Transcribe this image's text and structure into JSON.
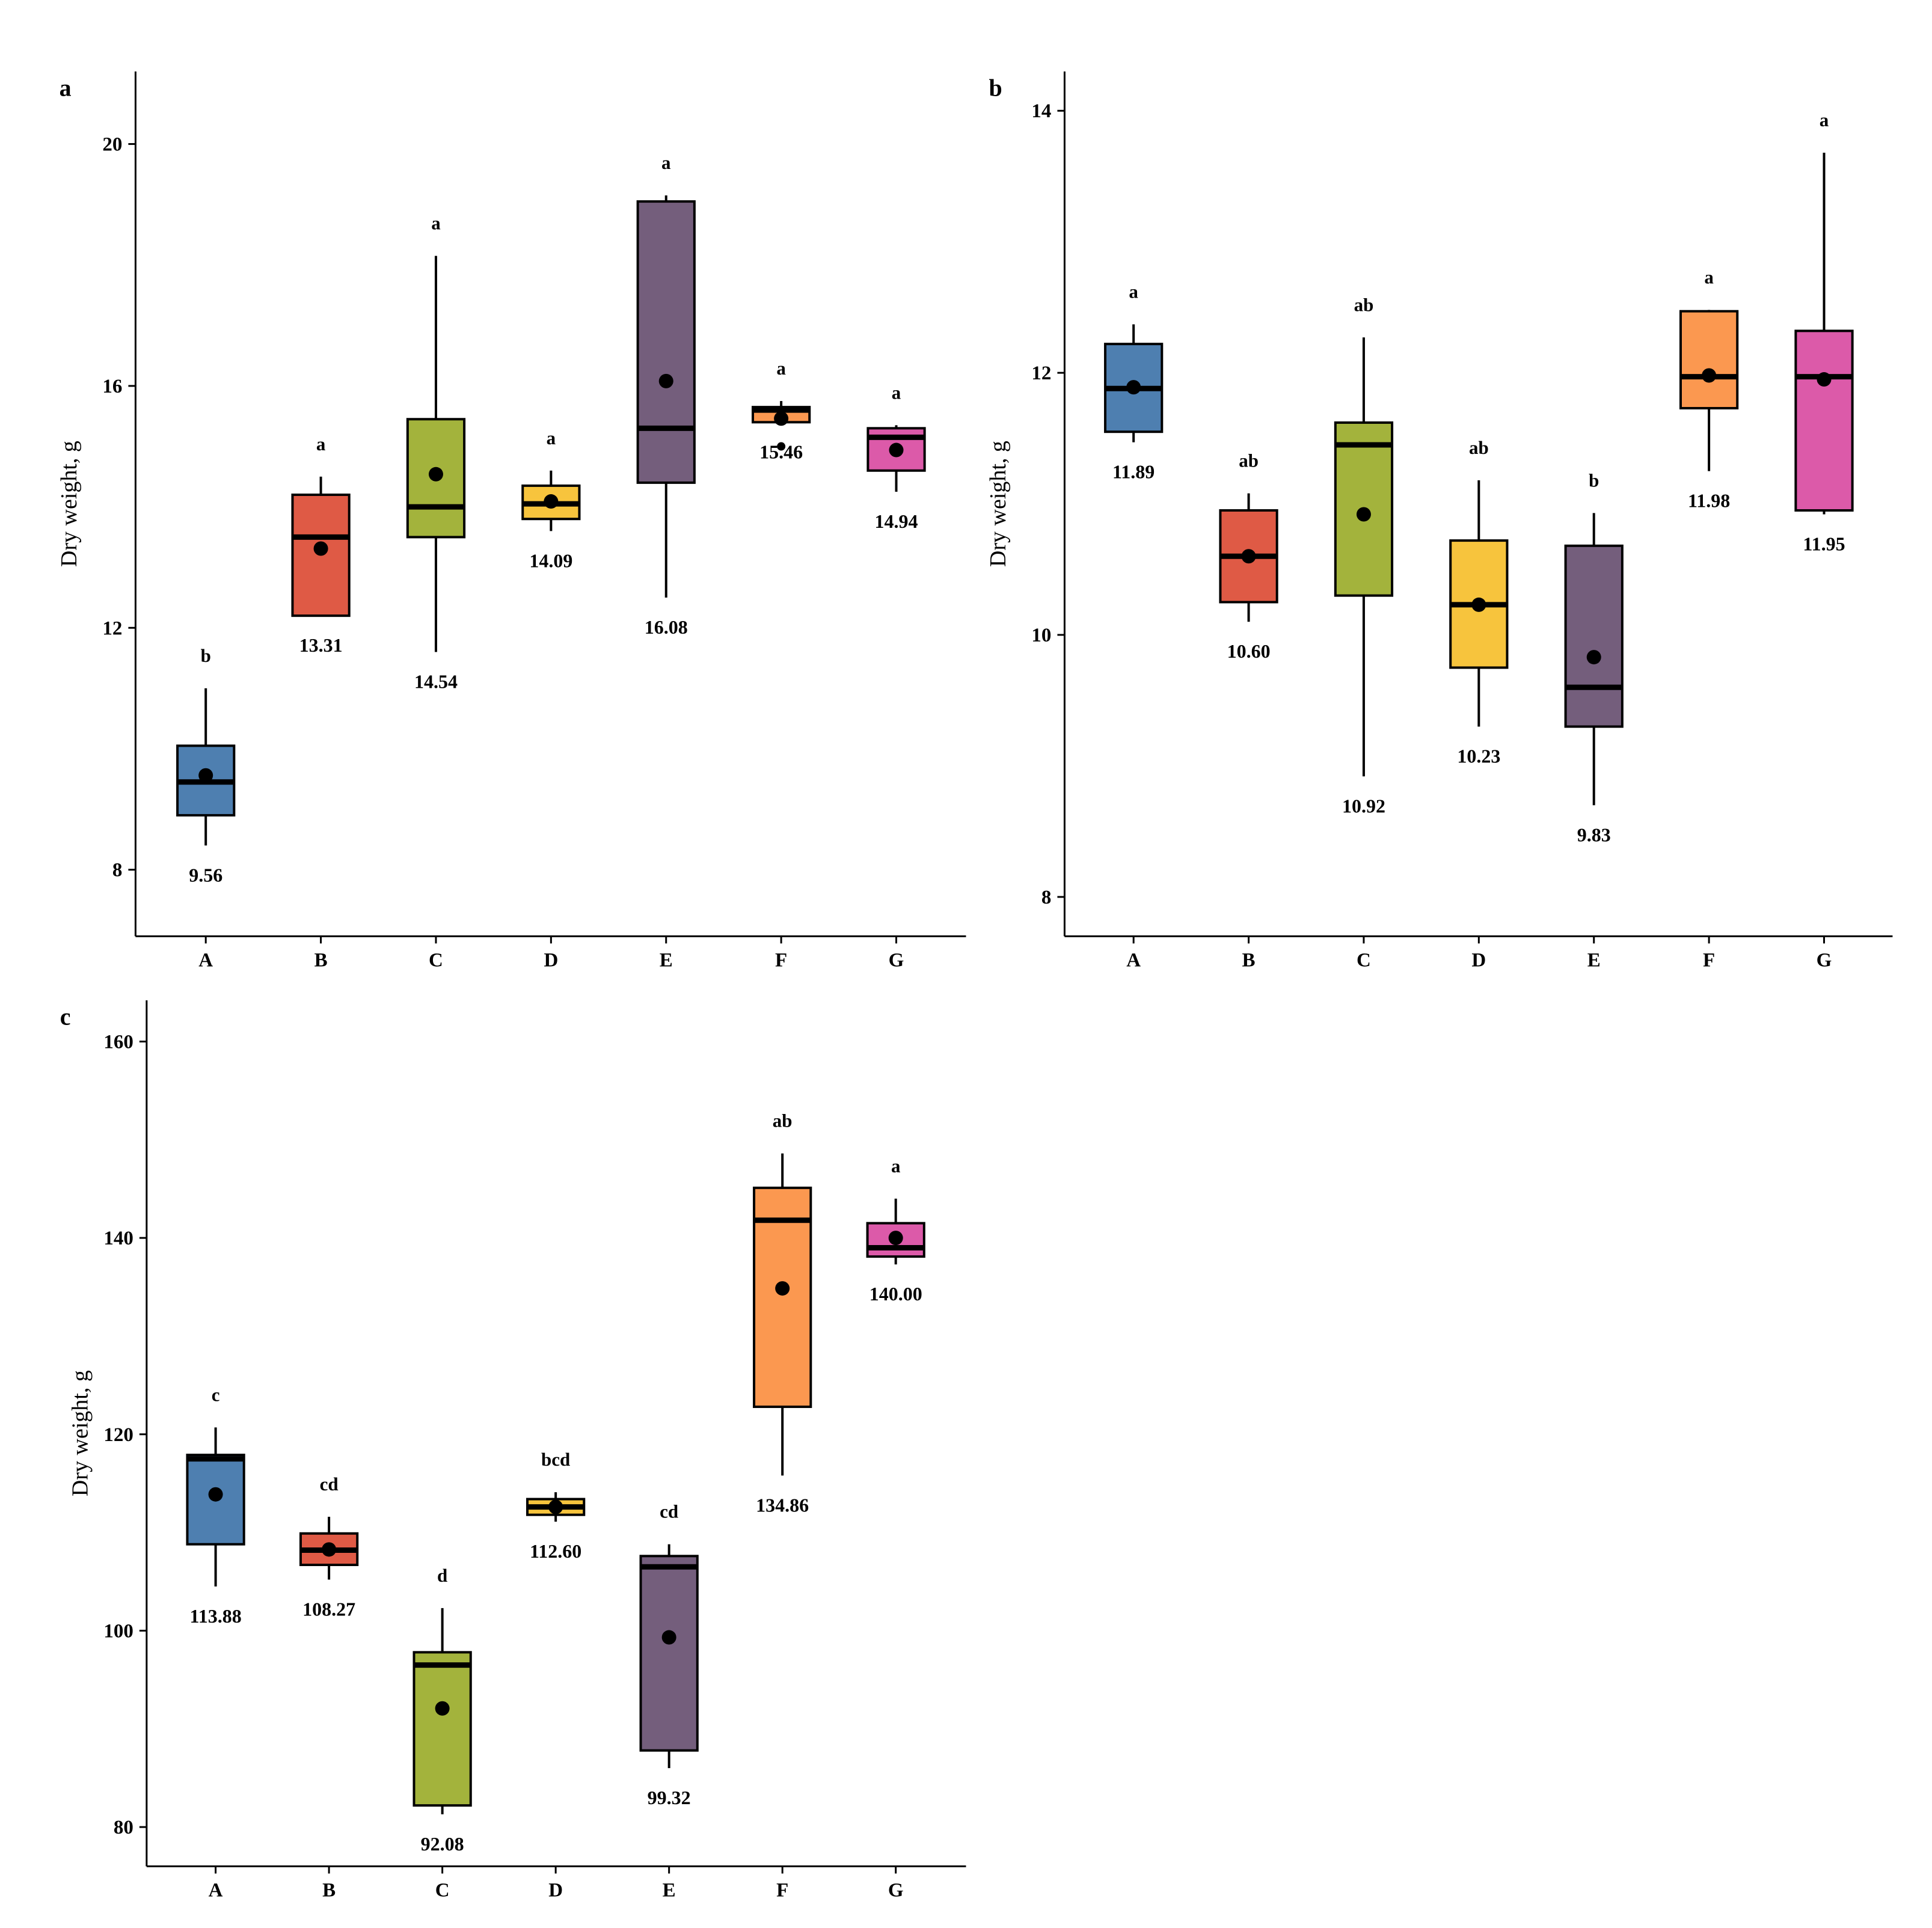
{
  "colors": {
    "A": "#4e7fb0",
    "B": "#df5a45",
    "C": "#a3b33c",
    "D": "#f7c43d",
    "E": "#745e7c",
    "F": "#fb9850",
    "G": "#dc5aa9"
  },
  "chart_data": [
    {
      "panel": "a",
      "type": "box",
      "ylabel": "Dry weight, g",
      "ylim": [
        6.9,
        21.2
      ],
      "yticks": [
        8,
        12,
        16,
        20
      ],
      "categories": [
        "A",
        "B",
        "C",
        "D",
        "E",
        "F",
        "G"
      ],
      "boxes": [
        {
          "cat": "A",
          "whisker_low": 8.4,
          "q1": 8.9,
          "median": 9.45,
          "q3": 10.05,
          "whisker_high": 11.0,
          "mean": 9.56,
          "mean_label": "9.56",
          "letter": "b",
          "outliers": []
        },
        {
          "cat": "B",
          "whisker_low": 12.2,
          "q1": 12.2,
          "median": 13.5,
          "q3": 14.2,
          "whisker_high": 14.5,
          "mean": 13.31,
          "mean_label": "13.31",
          "letter": "a",
          "outliers": []
        },
        {
          "cat": "C",
          "whisker_low": 11.6,
          "q1": 13.5,
          "median": 14.0,
          "q3": 15.45,
          "whisker_high": 18.15,
          "mean": 14.54,
          "mean_label": "14.54",
          "letter": "a",
          "outliers": []
        },
        {
          "cat": "D",
          "whisker_low": 13.6,
          "q1": 13.8,
          "median": 14.05,
          "q3": 14.35,
          "whisker_high": 14.6,
          "mean": 14.09,
          "mean_label": "14.09",
          "letter": "a",
          "outliers": []
        },
        {
          "cat": "E",
          "whisker_low": 12.5,
          "q1": 14.4,
          "median": 15.3,
          "q3": 19.05,
          "whisker_high": 19.15,
          "mean": 16.08,
          "mean_label": "16.08",
          "letter": "a",
          "outliers": []
        },
        {
          "cat": "F",
          "whisker_low": 15.4,
          "q1": 15.4,
          "median": 15.6,
          "q3": 15.65,
          "whisker_high": 15.75,
          "mean": 15.46,
          "mean_label": "15.46",
          "letter": "a",
          "outliers": [
            15.0
          ]
        },
        {
          "cat": "G",
          "whisker_low": 14.25,
          "q1": 14.6,
          "median": 15.15,
          "q3": 15.3,
          "whisker_high": 15.35,
          "mean": 14.94,
          "mean_label": "14.94",
          "letter": "a",
          "outliers": []
        }
      ]
    },
    {
      "panel": "b",
      "type": "box",
      "ylabel": "Dry weight, g",
      "ylim": [
        7.7,
        14.3
      ],
      "yticks": [
        8,
        10,
        12,
        14
      ],
      "categories": [
        "A",
        "B",
        "C",
        "D",
        "E",
        "F",
        "G"
      ],
      "boxes": [
        {
          "cat": "A",
          "whisker_low": 11.47,
          "q1": 11.55,
          "median": 11.88,
          "q3": 12.22,
          "whisker_high": 12.37,
          "mean": 11.89,
          "mean_label": "11.89",
          "letter": "a",
          "outliers": []
        },
        {
          "cat": "B",
          "whisker_low": 10.1,
          "q1": 10.25,
          "median": 10.6,
          "q3": 10.95,
          "whisker_high": 11.08,
          "mean": 10.6,
          "mean_label": "10.60",
          "letter": "ab",
          "outliers": []
        },
        {
          "cat": "C",
          "whisker_low": 8.92,
          "q1": 10.3,
          "median": 11.45,
          "q3": 11.62,
          "whisker_high": 12.27,
          "mean": 10.92,
          "mean_label": "10.92",
          "letter": "ab",
          "outliers": []
        },
        {
          "cat": "D",
          "whisker_low": 9.3,
          "q1": 9.75,
          "median": 10.23,
          "q3": 10.72,
          "whisker_high": 11.18,
          "mean": 10.23,
          "mean_label": "10.23",
          "letter": "ab",
          "outliers": []
        },
        {
          "cat": "E",
          "whisker_low": 8.7,
          "q1": 9.3,
          "median": 9.6,
          "q3": 10.68,
          "whisker_high": 10.93,
          "mean": 9.83,
          "mean_label": "9.83",
          "letter": "b",
          "outliers": []
        },
        {
          "cat": "F",
          "whisker_low": 11.25,
          "q1": 11.73,
          "median": 11.97,
          "q3": 12.47,
          "whisker_high": 12.48,
          "mean": 11.98,
          "mean_label": "11.98",
          "letter": "a",
          "outliers": []
        },
        {
          "cat": "G",
          "whisker_low": 10.92,
          "q1": 10.95,
          "median": 11.97,
          "q3": 12.32,
          "whisker_high": 13.68,
          "mean": 11.95,
          "mean_label": "11.95",
          "letter": "a",
          "outliers": []
        }
      ]
    },
    {
      "panel": "c",
      "type": "box",
      "ylabel": "Dry weight, g",
      "ylim": [
        76,
        164.2
      ],
      "yticks": [
        80,
        100,
        120,
        140,
        160
      ],
      "categories": [
        "A",
        "B",
        "C",
        "D",
        "E",
        "F",
        "G"
      ],
      "boxes": [
        {
          "cat": "A",
          "whisker_low": 104.5,
          "q1": 108.8,
          "median": 117.5,
          "q3": 117.9,
          "whisker_high": 120.7,
          "mean": 113.88,
          "mean_label": "113.88",
          "letter": "c",
          "outliers": []
        },
        {
          "cat": "B",
          "whisker_low": 105.2,
          "q1": 106.7,
          "median": 108.2,
          "q3": 109.9,
          "whisker_high": 111.6,
          "mean": 108.27,
          "mean_label": "108.27",
          "letter": "cd",
          "outliers": []
        },
        {
          "cat": "C",
          "whisker_low": 81.3,
          "q1": 82.2,
          "median": 96.5,
          "q3": 97.8,
          "whisker_high": 102.3,
          "mean": 92.08,
          "mean_label": "92.08",
          "letter": "d",
          "outliers": []
        },
        {
          "cat": "D",
          "whisker_low": 111.1,
          "q1": 111.8,
          "median": 112.6,
          "q3": 113.4,
          "whisker_high": 114.1,
          "mean": 112.6,
          "mean_label": "112.60",
          "letter": "bcd",
          "outliers": []
        },
        {
          "cat": "E",
          "whisker_low": 86.0,
          "q1": 87.8,
          "median": 106.5,
          "q3": 107.6,
          "whisker_high": 108.8,
          "mean": 99.32,
          "mean_label": "99.32",
          "letter": "cd",
          "outliers": []
        },
        {
          "cat": "F",
          "whisker_low": 115.8,
          "q1": 122.8,
          "median": 141.8,
          "q3": 145.1,
          "whisker_high": 148.6,
          "mean": 134.86,
          "mean_label": "134.86",
          "letter": "ab",
          "outliers": []
        },
        {
          "cat": "G",
          "whisker_low": 137.3,
          "q1": 138.1,
          "median": 139.0,
          "q3": 141.5,
          "whisker_high": 144.0,
          "mean": 140.0,
          "mean_label": "140.00",
          "letter": "a",
          "outliers": []
        }
      ]
    }
  ]
}
